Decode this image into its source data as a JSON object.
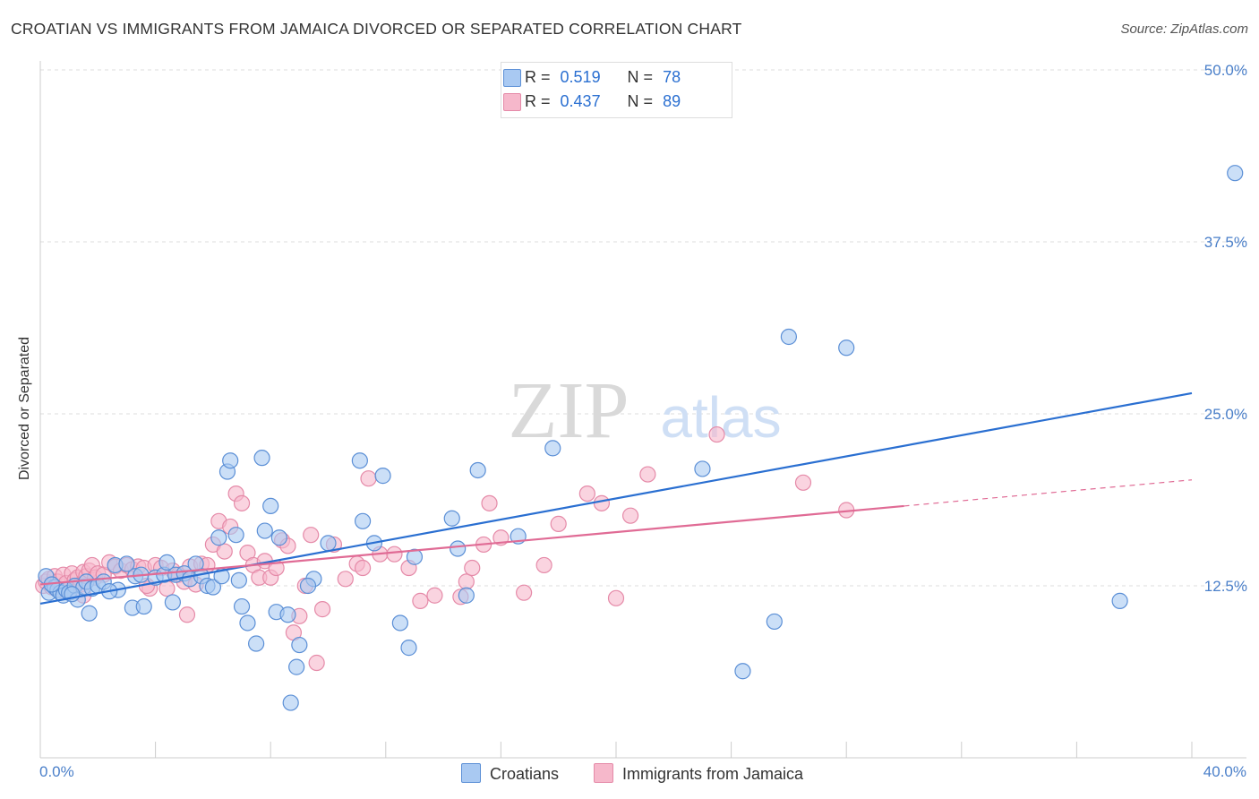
{
  "title": "CROATIAN VS IMMIGRANTS FROM JAMAICA DIVORCED OR SEPARATED CORRELATION CHART",
  "source": "Source: ZipAtlas.com",
  "watermark": {
    "zip": "ZIP",
    "atlas": "atlas"
  },
  "colors": {
    "blue_fill": "#a9c9f2",
    "blue_stroke": "#5b8fd6",
    "blue_line": "#2a6fd1",
    "pink_fill": "#f6b8cb",
    "pink_stroke": "#e58aa8",
    "pink_line": "#e06b95",
    "grid": "#dddddd",
    "axis_label": "#4a7fc9"
  },
  "legend_top": {
    "rows": [
      {
        "r_label": "R =",
        "r_value": "0.519",
        "n_label": "N =",
        "n_value": "78"
      },
      {
        "r_label": "R =",
        "r_value": "0.437",
        "n_label": "N =",
        "n_value": "89"
      }
    ]
  },
  "chart_data": {
    "type": "scatter",
    "title": "CROATIAN VS IMMIGRANTS FROM JAMAICA DIVORCED OR SEPARATED CORRELATION CHART",
    "xlabel": "",
    "ylabel": "Divorced or Separated",
    "xlim": [
      0,
      40
    ],
    "ylim": [
      0,
      50
    ],
    "x_tick_labels": [
      "0.0%",
      "40.0%"
    ],
    "y_ticks": [
      12.5,
      25.0,
      37.5,
      50.0
    ],
    "y_tick_labels": [
      "12.5%",
      "25.0%",
      "37.5%",
      "50.0%"
    ],
    "grid": true,
    "legend_position": "bottom",
    "series": [
      {
        "name": "Croatians",
        "r": 0.519,
        "n": 78,
        "trend": {
          "x": [
            0,
            40
          ],
          "y": [
            11.2,
            26.5
          ]
        },
        "points": [
          [
            0.2,
            13.2
          ],
          [
            0.3,
            12.0
          ],
          [
            0.5,
            12.4
          ],
          [
            0.6,
            12.2
          ],
          [
            0.7,
            12.0
          ],
          [
            0.8,
            11.8
          ],
          [
            0.9,
            12.2
          ],
          [
            1.0,
            12.0
          ],
          [
            1.2,
            12.5
          ],
          [
            1.3,
            11.5
          ],
          [
            1.5,
            12.4
          ],
          [
            1.6,
            12.8
          ],
          [
            1.7,
            10.5
          ],
          [
            1.8,
            12.3
          ],
          [
            2.0,
            12.5
          ],
          [
            2.2,
            12.8
          ],
          [
            2.6,
            14.0
          ],
          [
            2.7,
            12.2
          ],
          [
            3.2,
            10.9
          ],
          [
            3.3,
            13.2
          ],
          [
            3.5,
            13.3
          ],
          [
            3.6,
            11.0
          ],
          [
            4.0,
            13.1
          ],
          [
            4.3,
            13.3
          ],
          [
            4.6,
            11.3
          ],
          [
            4.7,
            13.3
          ],
          [
            5.0,
            13.4
          ],
          [
            5.2,
            13.0
          ],
          [
            5.6,
            13.2
          ],
          [
            5.8,
            12.5
          ],
          [
            6.0,
            12.4
          ],
          [
            6.2,
            16.0
          ],
          [
            6.3,
            13.2
          ],
          [
            6.5,
            20.8
          ],
          [
            6.6,
            21.6
          ],
          [
            6.8,
            16.2
          ],
          [
            7.0,
            11.0
          ],
          [
            7.2,
            9.8
          ],
          [
            7.5,
            8.3
          ],
          [
            7.7,
            21.8
          ],
          [
            7.8,
            16.5
          ],
          [
            8.0,
            18.3
          ],
          [
            8.2,
            10.6
          ],
          [
            8.3,
            16.0
          ],
          [
            8.6,
            10.4
          ],
          [
            8.7,
            4.0
          ],
          [
            8.9,
            6.6
          ],
          [
            9.0,
            8.2
          ],
          [
            9.5,
            13.0
          ],
          [
            10.0,
            15.6
          ],
          [
            11.1,
            21.6
          ],
          [
            11.2,
            17.2
          ],
          [
            11.6,
            15.6
          ],
          [
            11.9,
            20.5
          ],
          [
            12.5,
            9.8
          ],
          [
            12.8,
            8.0
          ],
          [
            13.0,
            14.6
          ],
          [
            14.3,
            17.4
          ],
          [
            14.5,
            15.2
          ],
          [
            14.8,
            11.8
          ],
          [
            15.2,
            20.9
          ],
          [
            16.6,
            16.1
          ],
          [
            17.8,
            22.5
          ],
          [
            23.0,
            21.0
          ],
          [
            24.4,
            6.3
          ],
          [
            25.5,
            9.9
          ],
          [
            26.0,
            30.6
          ],
          [
            28.0,
            29.8
          ],
          [
            37.5,
            11.4
          ],
          [
            41.5,
            42.5
          ],
          [
            0.4,
            12.6
          ],
          [
            1.1,
            11.9
          ],
          [
            2.4,
            12.1
          ],
          [
            3.0,
            14.1
          ],
          [
            4.4,
            14.2
          ],
          [
            5.4,
            14.1
          ],
          [
            6.9,
            12.9
          ],
          [
            9.3,
            12.5
          ]
        ]
      },
      {
        "name": "Immigrants from Jamaica",
        "r": 0.437,
        "n": 89,
        "trend": {
          "x": [
            0,
            30
          ],
          "y": [
            12.6,
            18.3
          ]
        },
        "trend_dashed": {
          "x": [
            30,
            40
          ],
          "y": [
            18.3,
            20.2
          ]
        },
        "points": [
          [
            0.1,
            12.5
          ],
          [
            0.2,
            12.8
          ],
          [
            0.3,
            13.0
          ],
          [
            0.4,
            12.4
          ],
          [
            0.5,
            13.2
          ],
          [
            0.6,
            12.8
          ],
          [
            0.7,
            12.2
          ],
          [
            0.8,
            13.3
          ],
          [
            0.9,
            12.7
          ],
          [
            1.0,
            12.3
          ],
          [
            1.1,
            13.4
          ],
          [
            1.2,
            12.9
          ],
          [
            1.3,
            13.1
          ],
          [
            1.4,
            12.6
          ],
          [
            1.5,
            13.5
          ],
          [
            1.6,
            13.2
          ],
          [
            1.7,
            13.6
          ],
          [
            1.8,
            14.0
          ],
          [
            1.9,
            13.1
          ],
          [
            2.0,
            13.4
          ],
          [
            2.2,
            13.3
          ],
          [
            2.4,
            14.2
          ],
          [
            2.6,
            13.9
          ],
          [
            2.8,
            13.6
          ],
          [
            3.0,
            14.0
          ],
          [
            3.2,
            13.7
          ],
          [
            3.4,
            13.9
          ],
          [
            3.6,
            13.8
          ],
          [
            3.8,
            12.3
          ],
          [
            4.0,
            14.0
          ],
          [
            4.2,
            13.8
          ],
          [
            4.4,
            12.3
          ],
          [
            4.6,
            13.6
          ],
          [
            4.8,
            13.3
          ],
          [
            5.0,
            12.8
          ],
          [
            5.2,
            13.9
          ],
          [
            5.4,
            12.6
          ],
          [
            5.6,
            14.1
          ],
          [
            5.8,
            14.0
          ],
          [
            6.0,
            15.5
          ],
          [
            6.2,
            17.2
          ],
          [
            6.4,
            15.0
          ],
          [
            6.6,
            16.8
          ],
          [
            6.8,
            19.2
          ],
          [
            7.0,
            18.5
          ],
          [
            7.2,
            14.9
          ],
          [
            7.4,
            14.0
          ],
          [
            7.6,
            13.1
          ],
          [
            7.8,
            14.3
          ],
          [
            8.0,
            13.1
          ],
          [
            8.2,
            13.8
          ],
          [
            8.4,
            15.8
          ],
          [
            8.6,
            15.4
          ],
          [
            8.8,
            9.1
          ],
          [
            9.0,
            10.3
          ],
          [
            9.2,
            12.5
          ],
          [
            9.4,
            16.2
          ],
          [
            9.6,
            6.9
          ],
          [
            9.8,
            10.8
          ],
          [
            10.2,
            15.5
          ],
          [
            10.6,
            13.0
          ],
          [
            11.0,
            14.1
          ],
          [
            11.2,
            13.8
          ],
          [
            11.4,
            20.3
          ],
          [
            11.8,
            14.8
          ],
          [
            12.3,
            14.8
          ],
          [
            12.8,
            13.8
          ],
          [
            13.2,
            11.4
          ],
          [
            13.7,
            11.8
          ],
          [
            14.6,
            11.7
          ],
          [
            14.8,
            12.8
          ],
          [
            15.0,
            13.8
          ],
          [
            15.4,
            15.5
          ],
          [
            15.6,
            18.5
          ],
          [
            16.0,
            16.0
          ],
          [
            16.8,
            12.0
          ],
          [
            17.5,
            14.0
          ],
          [
            18.0,
            17.0
          ],
          [
            19.0,
            19.2
          ],
          [
            19.5,
            18.5
          ],
          [
            20.0,
            11.6
          ],
          [
            20.5,
            17.6
          ],
          [
            21.1,
            20.6
          ],
          [
            23.5,
            23.5
          ],
          [
            26.5,
            20.0
          ],
          [
            28.0,
            18.0
          ],
          [
            5.1,
            10.4
          ],
          [
            3.7,
            12.5
          ],
          [
            1.5,
            11.8
          ]
        ]
      }
    ]
  }
}
